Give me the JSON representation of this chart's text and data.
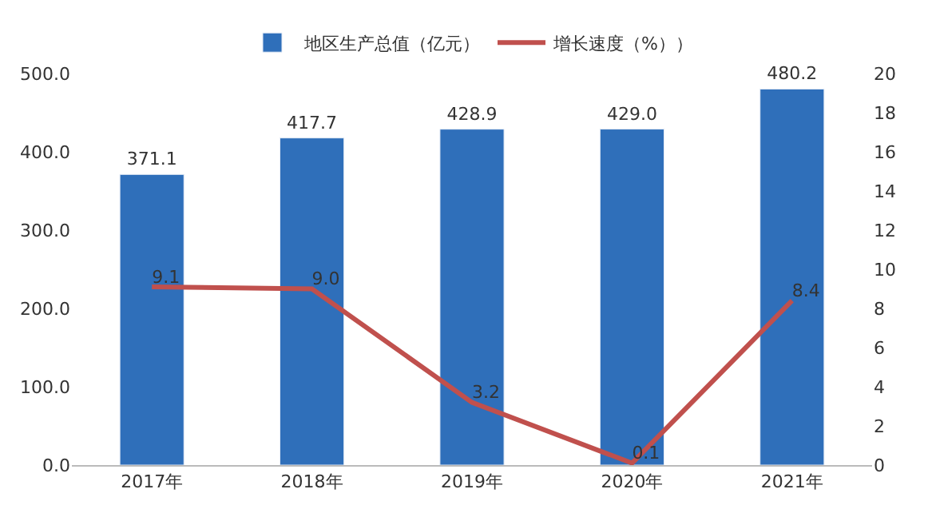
{
  "chart_data": {
    "type": "bar",
    "categories": [
      "2017年",
      "2018年",
      "2019年",
      "2020年",
      "2021年"
    ],
    "series": [
      {
        "name": "地区生产总值（亿元）",
        "color": "#2f6fba",
        "values": [
          371.1,
          417.7,
          428.9,
          429.0,
          480.2
        ],
        "value_labels": [
          "371.1",
          "417.7",
          "428.9",
          "429.0",
          "480.2"
        ]
      },
      {
        "name": "增长速度（%））",
        "type": "line",
        "axis": "y2",
        "color": "#c0504d",
        "values": [
          9.1,
          9.0,
          3.2,
          0.1,
          8.4
        ],
        "value_labels": [
          "9.1",
          "9.0",
          "3.2",
          "0.1",
          "8.4"
        ]
      }
    ],
    "ylim": [
      0,
      500
    ],
    "yticks": [
      {
        "value": 0,
        "label": "0.0"
      },
      {
        "value": 100,
        "label": "100.0"
      },
      {
        "value": 200,
        "label": "200.0"
      },
      {
        "value": 300,
        "label": "300.0"
      },
      {
        "value": 400,
        "label": "400.0"
      },
      {
        "value": 500,
        "label": "500.0"
      }
    ],
    "y2lim": [
      0,
      20
    ],
    "y2ticks": [
      0,
      2,
      4,
      6,
      8,
      10,
      12,
      14,
      16,
      18,
      20
    ],
    "legend": "top",
    "marker": "none",
    "line_style": "solid"
  }
}
